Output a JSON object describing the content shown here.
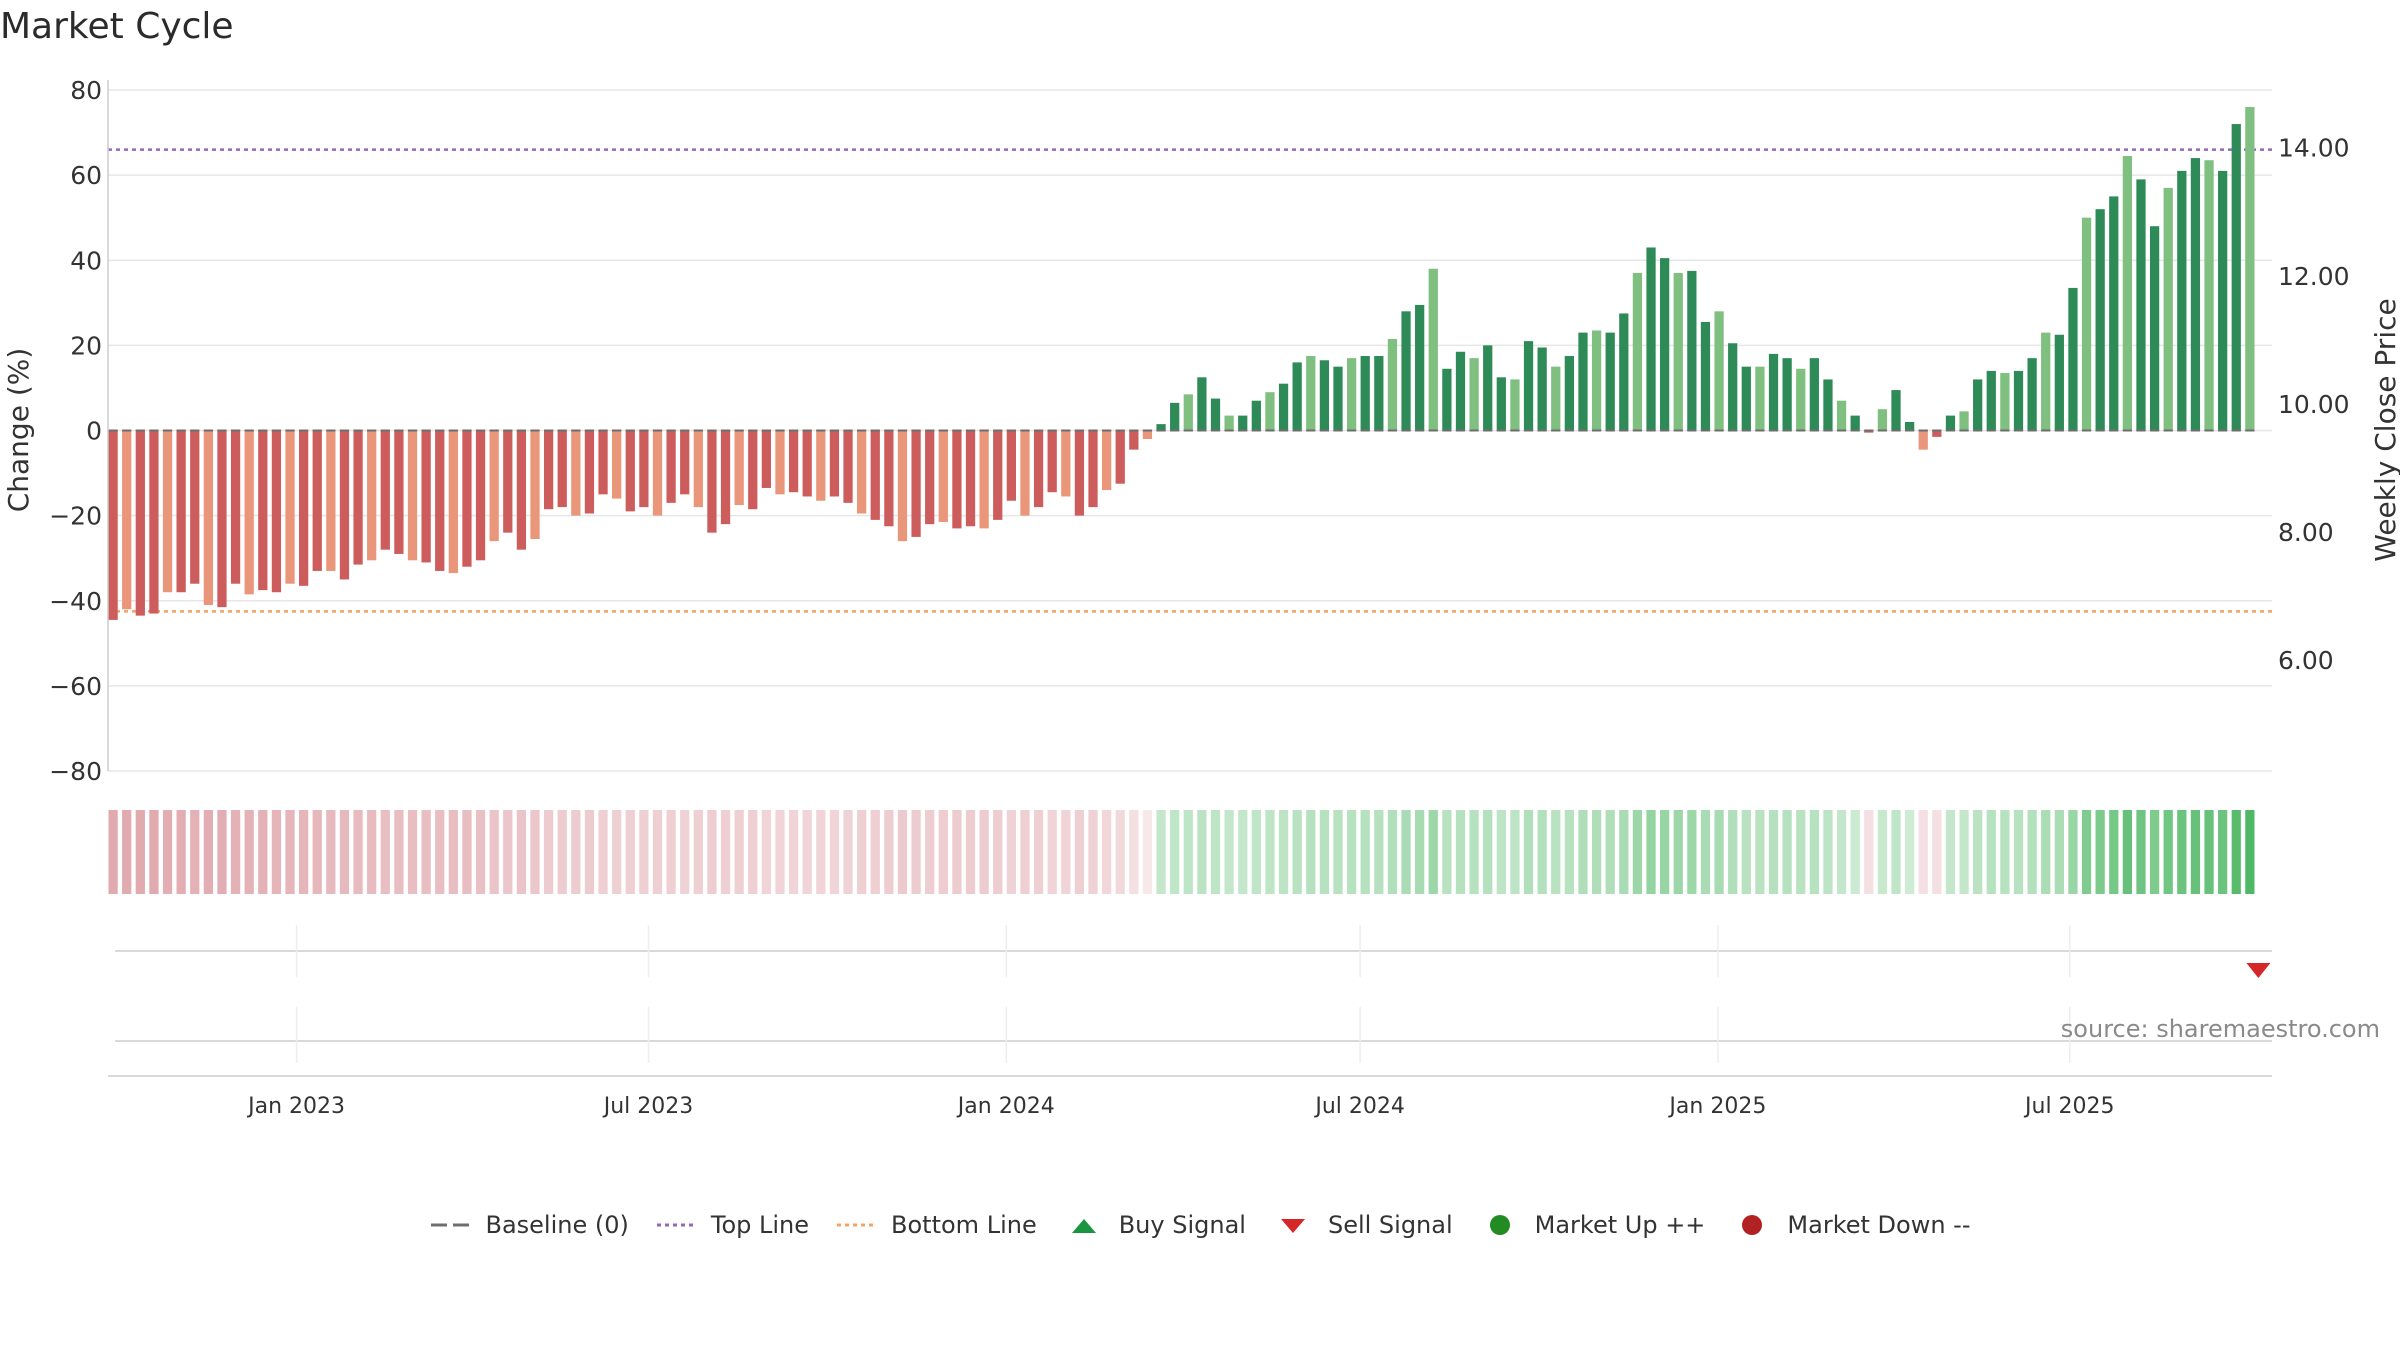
{
  "chart_data": {
    "type": "bar",
    "title": "Market Cycle",
    "ylabel": "Change (%)",
    "y2label": "Weekly Close Price",
    "ylim": [
      -80,
      80
    ],
    "yticks": [
      80,
      60,
      40,
      20,
      0,
      -20,
      -40,
      -60,
      -80
    ],
    "y2ticks": [
      "14.00",
      "12.00",
      "10.00",
      "8.00",
      "6.00"
    ],
    "y2lim": [
      4.27,
      14.9
    ],
    "x_start": "2022-09-26",
    "week_days": 7,
    "x_end": "2025-10-13",
    "x_ticks": [
      {
        "label": "Jan 2023",
        "date": "2023-01-01"
      },
      {
        "label": "Jul 2023",
        "date": "2023-07-01"
      },
      {
        "label": "Jan 2024",
        "date": "2024-01-01"
      },
      {
        "label": "Jul 2024",
        "date": "2024-07-01"
      },
      {
        "label": "Jan 2025",
        "date": "2025-01-01"
      },
      {
        "label": "Jul 2025",
        "date": "2025-07-01"
      }
    ],
    "top_line": 66,
    "bottom_line": -42.5,
    "baseline": 0,
    "values": [
      -44.5,
      -42,
      -43.5,
      -43,
      -38,
      -38,
      -36,
      -41,
      -41.5,
      -36,
      -38.5,
      -37.5,
      -38,
      -36,
      -36.5,
      -33,
      -33,
      -35,
      -31.5,
      -30.5,
      -28,
      -29,
      -30.5,
      -31,
      -33,
      -33.5,
      -32,
      -30.5,
      -26,
      -24,
      -28,
      -25.5,
      -18.5,
      -18,
      -20,
      -19.5,
      -15,
      -16,
      -19,
      -18,
      -20,
      -17,
      -15,
      -18,
      -24,
      -22,
      -17.5,
      -18.5,
      -13.5,
      -15,
      -14.5,
      -15.5,
      -16.5,
      -15.5,
      -17,
      -19.5,
      -21,
      -22.5,
      -26,
      -25,
      -22,
      -21.5,
      -23,
      -22.5,
      -23,
      -21,
      -16.5,
      -20,
      -18,
      -14.5,
      -15.5,
      -20,
      -18,
      -14,
      -12.5,
      -4.5,
      -2,
      1.5,
      6.5,
      8.5,
      12.5,
      7.5,
      3.5,
      3.5,
      7,
      9,
      11,
      16,
      17.5,
      16.5,
      15,
      17,
      17.5,
      17.5,
      21.5,
      28,
      29.5,
      38,
      14.5,
      18.5,
      17,
      20,
      12.5,
      12,
      21,
      19.5,
      15,
      17.5,
      23,
      23.5,
      23,
      27.5,
      37,
      43,
      40.5,
      37,
      37.5,
      25.5,
      28,
      20.5,
      15,
      15,
      18,
      17,
      14.5,
      17,
      12,
      7,
      3.5,
      -0.5,
      5,
      9.5,
      2,
      -4.5,
      -1.5,
      3.5,
      4.5,
      12,
      14,
      13.5,
      14,
      17,
      23,
      22.5,
      33.5,
      50,
      52,
      55,
      64.5,
      59,
      48,
      57,
      61,
      64,
      63.5,
      61,
      72,
      76
    ],
    "intensity": [
      0.55,
      0.55,
      0.55,
      0.55,
      0.52,
      0.52,
      0.5,
      0.52,
      0.52,
      0.5,
      0.5,
      0.5,
      0.48,
      0.48,
      0.48,
      0.46,
      0.45,
      0.45,
      0.44,
      0.44,
      0.42,
      0.42,
      0.42,
      0.42,
      0.42,
      0.42,
      0.42,
      0.4,
      0.38,
      0.37,
      0.38,
      0.36,
      0.33,
      0.33,
      0.33,
      0.33,
      0.3,
      0.3,
      0.3,
      0.3,
      0.3,
      0.3,
      0.29,
      0.3,
      0.32,
      0.31,
      0.3,
      0.3,
      0.28,
      0.28,
      0.28,
      0.28,
      0.28,
      0.28,
      0.29,
      0.3,
      0.31,
      0.32,
      0.34,
      0.33,
      0.32,
      0.32,
      0.33,
      0.33,
      0.33,
      0.32,
      0.29,
      0.31,
      0.3,
      0.28,
      0.28,
      0.31,
      0.29,
      0.26,
      0.25,
      0.2,
      0.15,
      0.3,
      0.32,
      0.33,
      0.35,
      0.33,
      0.3,
      0.3,
      0.32,
      0.33,
      0.34,
      0.36,
      0.38,
      0.37,
      0.36,
      0.37,
      0.38,
      0.38,
      0.4,
      0.44,
      0.45,
      0.5,
      0.36,
      0.38,
      0.37,
      0.39,
      0.34,
      0.34,
      0.4,
      0.39,
      0.36,
      0.37,
      0.41,
      0.41,
      0.41,
      0.44,
      0.5,
      0.55,
      0.53,
      0.5,
      0.51,
      0.44,
      0.45,
      0.4,
      0.36,
      0.36,
      0.38,
      0.38,
      0.36,
      0.37,
      0.34,
      0.3,
      0.27,
      0.2,
      0.28,
      0.32,
      0.25,
      0.2,
      0.2,
      0.3,
      0.3,
      0.35,
      0.37,
      0.37,
      0.37,
      0.39,
      0.43,
      0.43,
      0.52,
      0.65,
      0.67,
      0.7,
      0.78,
      0.74,
      0.66,
      0.72,
      0.76,
      0.78,
      0.78,
      0.76,
      0.85,
      0.9
    ],
    "sell_signals": [
      "2025-10-06"
    ],
    "buy_signals": [],
    "market_up": [],
    "market_down": [],
    "legend_position": "bottom-center"
  },
  "legend": [
    {
      "label": "Baseline (0)",
      "symbol": "dash-long",
      "color": "#6e6e6e"
    },
    {
      "label": "Top Line",
      "symbol": "dotted",
      "color": "#9467bd"
    },
    {
      "label": "Bottom Line",
      "symbol": "dotted",
      "color": "#f4a460"
    },
    {
      "label": "Buy Signal",
      "symbol": "triangle-up",
      "color": "#1a9641"
    },
    {
      "label": "Sell Signal",
      "symbol": "triangle-down",
      "color": "#d62728"
    },
    {
      "label": "Market Up ++",
      "symbol": "circle",
      "color": "#228b22"
    },
    {
      "label": "Market Down --",
      "symbol": "circle",
      "color": "#b22222"
    }
  ],
  "colors": {
    "pos_dark": "#2e8b57",
    "pos_light": "#7fbf7f",
    "neg_dark": "#cd5c5c",
    "neg_light": "#e9967a",
    "top_line": "#9467bd",
    "bottom_line": "#f4a460",
    "baseline": "#6e6e6e",
    "grid": "#e6e6e6",
    "heat_pos": "#3cb054",
    "heat_neg": "#c8646e"
  },
  "source": "source: sharemaestro.com"
}
